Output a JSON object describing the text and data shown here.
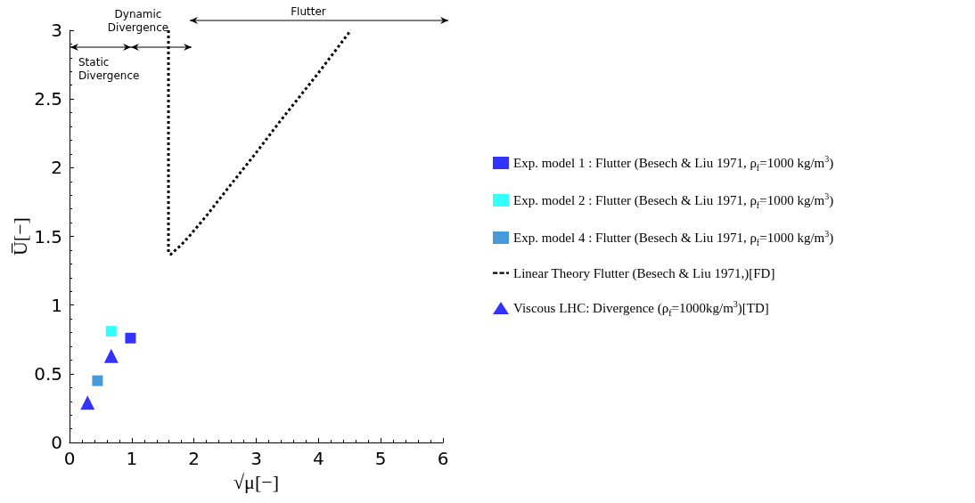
{
  "chart_data": {
    "type": "scatter",
    "xlabel": "√μ[−]",
    "ylabel": "U̅[−]",
    "xlim": [
      0,
      6
    ],
    "xticks": [
      0,
      1,
      2,
      3,
      4,
      5,
      6
    ],
    "ylim": [
      0,
      3
    ],
    "yticks": [
      0,
      0.5,
      1,
      1.5,
      2,
      2.5,
      3
    ],
    "grid": false,
    "legend": "right",
    "series": [
      {
        "name": "Exp. model 1 : Flutter (Besech & Liu 1971, ρ$_{f}$=1000 kg/m$^{3}$)",
        "color": "#0000ff",
        "marker": "square",
        "x": [
          0.98
        ],
        "values": [
          0.76
        ]
      },
      {
        "name": "Exp. model 2 : Flutter (Besech & Liu 1971, ρ$_{f}$=1000 kg/m$^{3}$)",
        "color": "#00ffff",
        "marker": "square",
        "x": [
          0.67
        ],
        "values": [
          0.81
        ]
      },
      {
        "name": "Exp. model 4 : Flutter (Besech & Liu 1971, ρ$_{f}$=1000 kg/m$^{3}$)",
        "color": "#1a7fd0",
        "marker": "square",
        "x": [
          0.45
        ],
        "values": [
          0.45
        ]
      },
      {
        "name": "Linear Theory Flutter (Besech & Liu 1971,)[FD]",
        "type": "line",
        "color": "#000000",
        "line_style": "dashed",
        "marker": "none",
        "x": [
          1.59,
          1.59,
          1.63,
          1.8,
          1.94,
          2.2,
          2.51,
          3.0,
          3.37,
          4.0,
          4.52
        ],
        "values": [
          3.0,
          1.38,
          1.37,
          1.44,
          1.51,
          1.65,
          1.83,
          2.11,
          2.33,
          2.69,
          3.0
        ]
      },
      {
        "name": "Viscous LHC: Divergence (ρ$_{f}$=1000kg/m$^{3}$)[TD]",
        "color": "#0000ff",
        "marker": "triangle",
        "x": [
          0.29,
          0.67
        ],
        "values": [
          0.29,
          0.63
        ]
      }
    ],
    "annotations": [
      "Static\nDivergence",
      "Dynamic\nDivergence",
      "Flutter"
    ]
  }
}
